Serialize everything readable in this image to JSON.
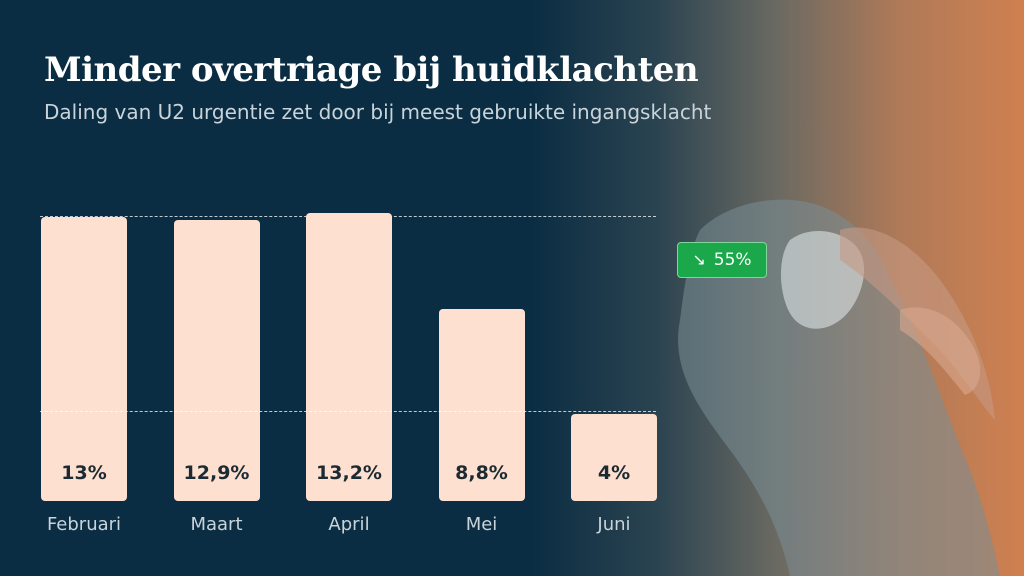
{
  "header": {
    "title": "Minder overtriage bij huidklachten",
    "subtitle": "Daling van U2 urgentie zet door bij meest gebruikte ingangsklacht"
  },
  "badge": {
    "icon": "trend-down-icon",
    "glyph": "↘",
    "text": "55%",
    "color": "#1aa84a"
  },
  "colors": {
    "background": "#0b2d43",
    "bar": "#fde0cf",
    "accent": "#cf8050"
  },
  "chart_data": {
    "type": "bar",
    "categories": [
      "Februari",
      "Maart",
      "April",
      "Mei",
      "Juni"
    ],
    "values": [
      13,
      12.9,
      13.2,
      8.8,
      4
    ],
    "labels": [
      "13%",
      "12,9%",
      "13,2%",
      "8,8%",
      "4%"
    ],
    "title": "Minder overtriage bij huidklachten",
    "subtitle": "Daling van U2 urgentie zet door bij meest gebruikte ingangsklacht",
    "xlabel": "",
    "ylabel": "",
    "ylim": [
      0,
      13.2
    ],
    "grid": false,
    "legend": "none"
  }
}
